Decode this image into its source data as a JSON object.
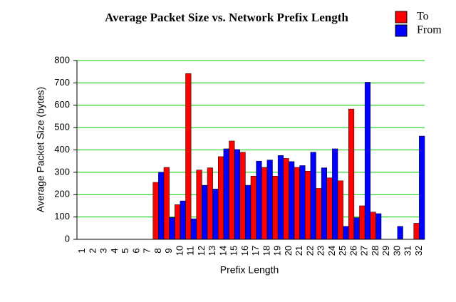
{
  "chart_data": {
    "type": "bar",
    "title": "Average Packet Size vs. Network Prefix Length",
    "x_label": "Prefix Length",
    "y_label": "Average Packet Size (bytes)",
    "categories": [
      "1",
      "2",
      "3",
      "4",
      "5",
      "6",
      "7",
      "8",
      "9",
      "10",
      "11",
      "12",
      "13",
      "14",
      "15",
      "16",
      "17",
      "18",
      "19",
      "20",
      "21",
      "22",
      "23",
      "24",
      "25",
      "26",
      "27",
      "28",
      "29",
      "30",
      "31",
      "32"
    ],
    "series": [
      {
        "name": "To",
        "color": "#ff0000",
        "values": [
          0,
          0,
          0,
          0,
          0,
          0,
          0,
          255,
          322,
          155,
          742,
          310,
          320,
          370,
          440,
          390,
          283,
          322,
          283,
          362,
          322,
          305,
          228,
          275,
          262,
          583,
          150,
          122,
          0,
          0,
          0,
          72
        ]
      },
      {
        "name": "From",
        "color": "#0000ff",
        "values": [
          0,
          0,
          0,
          0,
          0,
          0,
          0,
          300,
          98,
          172,
          92,
          242,
          225,
          405,
          402,
          242,
          350,
          355,
          375,
          348,
          330,
          390,
          320,
          405,
          58,
          97,
          703,
          115,
          0,
          58,
          0,
          462
        ]
      }
    ],
    "ylim": [
      0,
      800
    ],
    "yticks": [
      0,
      100,
      200,
      300,
      400,
      500,
      600,
      700,
      800
    ],
    "grid": true,
    "grid_color": "#00cc00",
    "legend": "top-right"
  }
}
